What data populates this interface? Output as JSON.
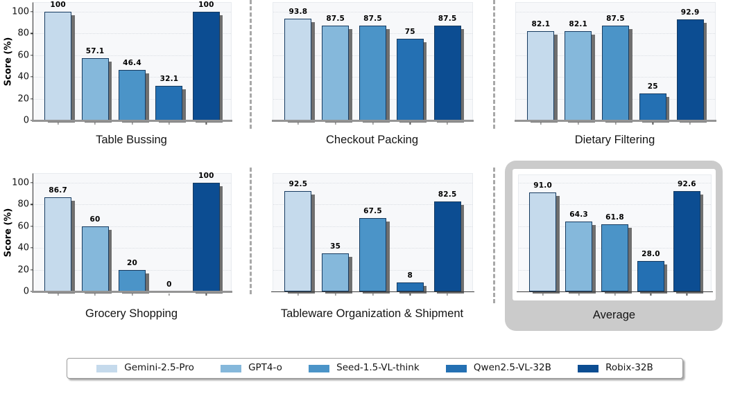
{
  "chart_data": {
    "type": "bar",
    "ylabel": "Score (%)",
    "yticks": [
      0,
      20,
      40,
      60,
      80,
      100
    ],
    "ylim": [
      0,
      108
    ],
    "grid": "dotted-horizontal",
    "legend_position": "bottom",
    "series_names": [
      "Gemini-2.5-Pro",
      "GPT4-o",
      "Seed-1.5-VL-think",
      "Qwen2.5-VL-32B",
      "Robix-32B"
    ],
    "series_colors": [
      "#c5daec",
      "#85b8db",
      "#4b94c8",
      "#2470b3",
      "#0c4d92"
    ],
    "panels": [
      {
        "title": "Table Bussing",
        "values": [
          100,
          57.1,
          46.4,
          32.1,
          100
        ],
        "labels": [
          "100",
          "57.1",
          "46.4",
          "32.1",
          "100"
        ],
        "highlighted": false
      },
      {
        "title": "Checkout Packing",
        "values": [
          93.8,
          87.5,
          87.5,
          75,
          87.5
        ],
        "labels": [
          "93.8",
          "87.5",
          "87.5",
          "75",
          "87.5"
        ],
        "highlighted": false
      },
      {
        "title": "Dietary Filtering",
        "values": [
          82.1,
          82.1,
          87.5,
          25,
          92.9
        ],
        "labels": [
          "82.1",
          "82.1",
          "87.5",
          "25",
          "92.9"
        ],
        "highlighted": false
      },
      {
        "title": "Grocery Shopping",
        "values": [
          86.7,
          60,
          20,
          0,
          100
        ],
        "labels": [
          "86.7",
          "60",
          "20",
          "0",
          "100"
        ],
        "highlighted": false
      },
      {
        "title": "Tableware Organization & Shipment",
        "values": [
          92.5,
          35,
          67.5,
          8,
          82.5
        ],
        "labels": [
          "92.5",
          "35",
          "67.5",
          "8",
          "82.5"
        ],
        "highlighted": false
      },
      {
        "title": "Average",
        "values": [
          91.0,
          64.3,
          61.8,
          28.0,
          92.6
        ],
        "labels": [
          "91.0",
          "64.3",
          "61.8",
          "28.0",
          "92.6"
        ],
        "highlighted": true
      }
    ]
  }
}
